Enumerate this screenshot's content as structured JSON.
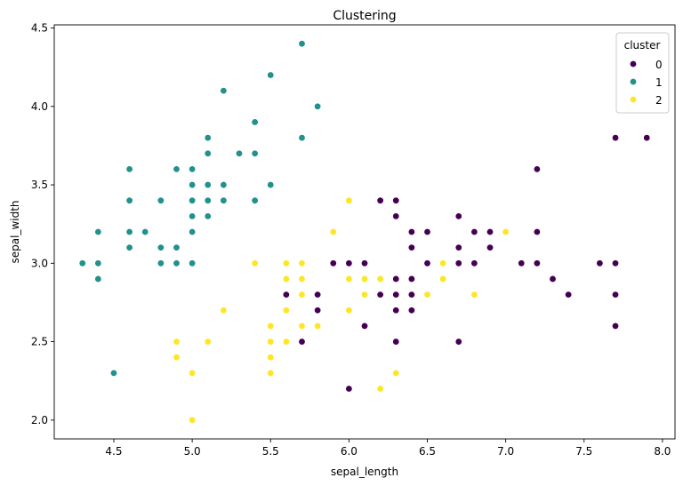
{
  "chart_data": {
    "type": "scatter",
    "title": "Clustering",
    "xlabel": "sepal_length",
    "ylabel": "sepal_width",
    "xlim": [
      4.12,
      8.08
    ],
    "ylim": [
      1.88,
      4.52
    ],
    "xticks": [
      4.5,
      5.0,
      5.5,
      6.0,
      6.5,
      7.0,
      7.5,
      8.0
    ],
    "xtick_labels": [
      "4.5",
      "5.0",
      "5.5",
      "6.0",
      "6.5",
      "7.0",
      "7.5",
      "8.0"
    ],
    "yticks": [
      2.0,
      2.5,
      3.0,
      3.5,
      4.0,
      4.5
    ],
    "ytick_labels": [
      "2.0",
      "2.5",
      "3.0",
      "3.5",
      "4.0",
      "4.5"
    ],
    "grid": false,
    "legend": {
      "title": "cluster",
      "placement": "top-right",
      "entries": [
        {
          "label": "0",
          "color": "#440154"
        },
        {
          "label": "1",
          "color": "#21918c"
        },
        {
          "label": "2",
          "color": "#fde725"
        }
      ]
    },
    "series": [
      {
        "name": "0",
        "color": "#440154",
        "points": [
          [
            7.7,
            3.8
          ],
          [
            7.9,
            3.8
          ],
          [
            7.2,
            3.6
          ],
          [
            6.2,
            3.4
          ],
          [
            6.3,
            3.4
          ],
          [
            6.3,
            3.3
          ],
          [
            6.7,
            3.3
          ],
          [
            6.4,
            3.2
          ],
          [
            6.5,
            3.2
          ],
          [
            6.8,
            3.2
          ],
          [
            6.9,
            3.2
          ],
          [
            7.2,
            3.2
          ],
          [
            6.4,
            3.1
          ],
          [
            6.7,
            3.1
          ],
          [
            6.9,
            3.1
          ],
          [
            5.9,
            3.0
          ],
          [
            6.0,
            3.0
          ],
          [
            6.1,
            3.0
          ],
          [
            6.5,
            3.0
          ],
          [
            6.7,
            3.0
          ],
          [
            6.8,
            3.0
          ],
          [
            7.1,
            3.0
          ],
          [
            7.2,
            3.0
          ],
          [
            7.6,
            3.0
          ],
          [
            7.7,
            3.0
          ],
          [
            6.3,
            2.9
          ],
          [
            6.4,
            2.9
          ],
          [
            7.3,
            2.9
          ],
          [
            5.6,
            2.8
          ],
          [
            5.8,
            2.8
          ],
          [
            6.2,
            2.8
          ],
          [
            6.3,
            2.8
          ],
          [
            6.4,
            2.8
          ],
          [
            7.4,
            2.8
          ],
          [
            7.7,
            2.8
          ],
          [
            5.8,
            2.7
          ],
          [
            6.3,
            2.7
          ],
          [
            6.4,
            2.7
          ],
          [
            6.1,
            2.6
          ],
          [
            7.7,
            2.6
          ],
          [
            5.7,
            2.5
          ],
          [
            6.3,
            2.5
          ],
          [
            6.7,
            2.5
          ],
          [
            6.0,
            2.2
          ]
        ]
      },
      {
        "name": "1",
        "color": "#21918c",
        "points": [
          [
            5.7,
            4.4
          ],
          [
            5.5,
            4.2
          ],
          [
            5.2,
            4.1
          ],
          [
            5.8,
            4.0
          ],
          [
            5.4,
            3.9
          ],
          [
            5.1,
            3.8
          ],
          [
            5.7,
            3.8
          ],
          [
            5.1,
            3.7
          ],
          [
            5.3,
            3.7
          ],
          [
            5.4,
            3.7
          ],
          [
            4.6,
            3.6
          ],
          [
            4.9,
            3.6
          ],
          [
            5.0,
            3.6
          ],
          [
            5.0,
            3.5
          ],
          [
            5.1,
            3.5
          ],
          [
            5.2,
            3.5
          ],
          [
            5.5,
            3.5
          ],
          [
            4.6,
            3.4
          ],
          [
            4.8,
            3.4
          ],
          [
            5.0,
            3.4
          ],
          [
            5.1,
            3.4
          ],
          [
            5.2,
            3.4
          ],
          [
            5.4,
            3.4
          ],
          [
            5.0,
            3.3
          ],
          [
            5.1,
            3.3
          ],
          [
            4.4,
            3.2
          ],
          [
            4.6,
            3.2
          ],
          [
            4.7,
            3.2
          ],
          [
            5.0,
            3.2
          ],
          [
            4.6,
            3.1
          ],
          [
            4.8,
            3.1
          ],
          [
            4.9,
            3.1
          ],
          [
            4.3,
            3.0
          ],
          [
            4.4,
            3.0
          ],
          [
            4.8,
            3.0
          ],
          [
            4.9,
            3.0
          ],
          [
            5.0,
            3.0
          ],
          [
            4.4,
            2.9
          ],
          [
            4.5,
            2.3
          ]
        ]
      },
      {
        "name": "2",
        "color": "#fde725",
        "points": [
          [
            6.0,
            3.4
          ],
          [
            5.9,
            3.2
          ],
          [
            7.0,
            3.2
          ],
          [
            5.4,
            3.0
          ],
          [
            5.6,
            3.0
          ],
          [
            5.7,
            3.0
          ],
          [
            6.6,
            3.0
          ],
          [
            5.6,
            2.9
          ],
          [
            5.7,
            2.9
          ],
          [
            6.0,
            2.9
          ],
          [
            6.1,
            2.9
          ],
          [
            6.2,
            2.9
          ],
          [
            6.6,
            2.9
          ],
          [
            5.7,
            2.8
          ],
          [
            6.1,
            2.8
          ],
          [
            6.5,
            2.8
          ],
          [
            6.8,
            2.8
          ],
          [
            5.2,
            2.7
          ],
          [
            5.6,
            2.7
          ],
          [
            6.0,
            2.7
          ],
          [
            5.5,
            2.6
          ],
          [
            5.7,
            2.6
          ],
          [
            5.8,
            2.6
          ],
          [
            4.9,
            2.5
          ],
          [
            5.1,
            2.5
          ],
          [
            5.5,
            2.5
          ],
          [
            5.6,
            2.5
          ],
          [
            4.9,
            2.4
          ],
          [
            5.5,
            2.4
          ],
          [
            5.0,
            2.3
          ],
          [
            5.5,
            2.3
          ],
          [
            6.3,
            2.3
          ],
          [
            6.2,
            2.2
          ],
          [
            5.0,
            2.0
          ]
        ]
      }
    ]
  }
}
